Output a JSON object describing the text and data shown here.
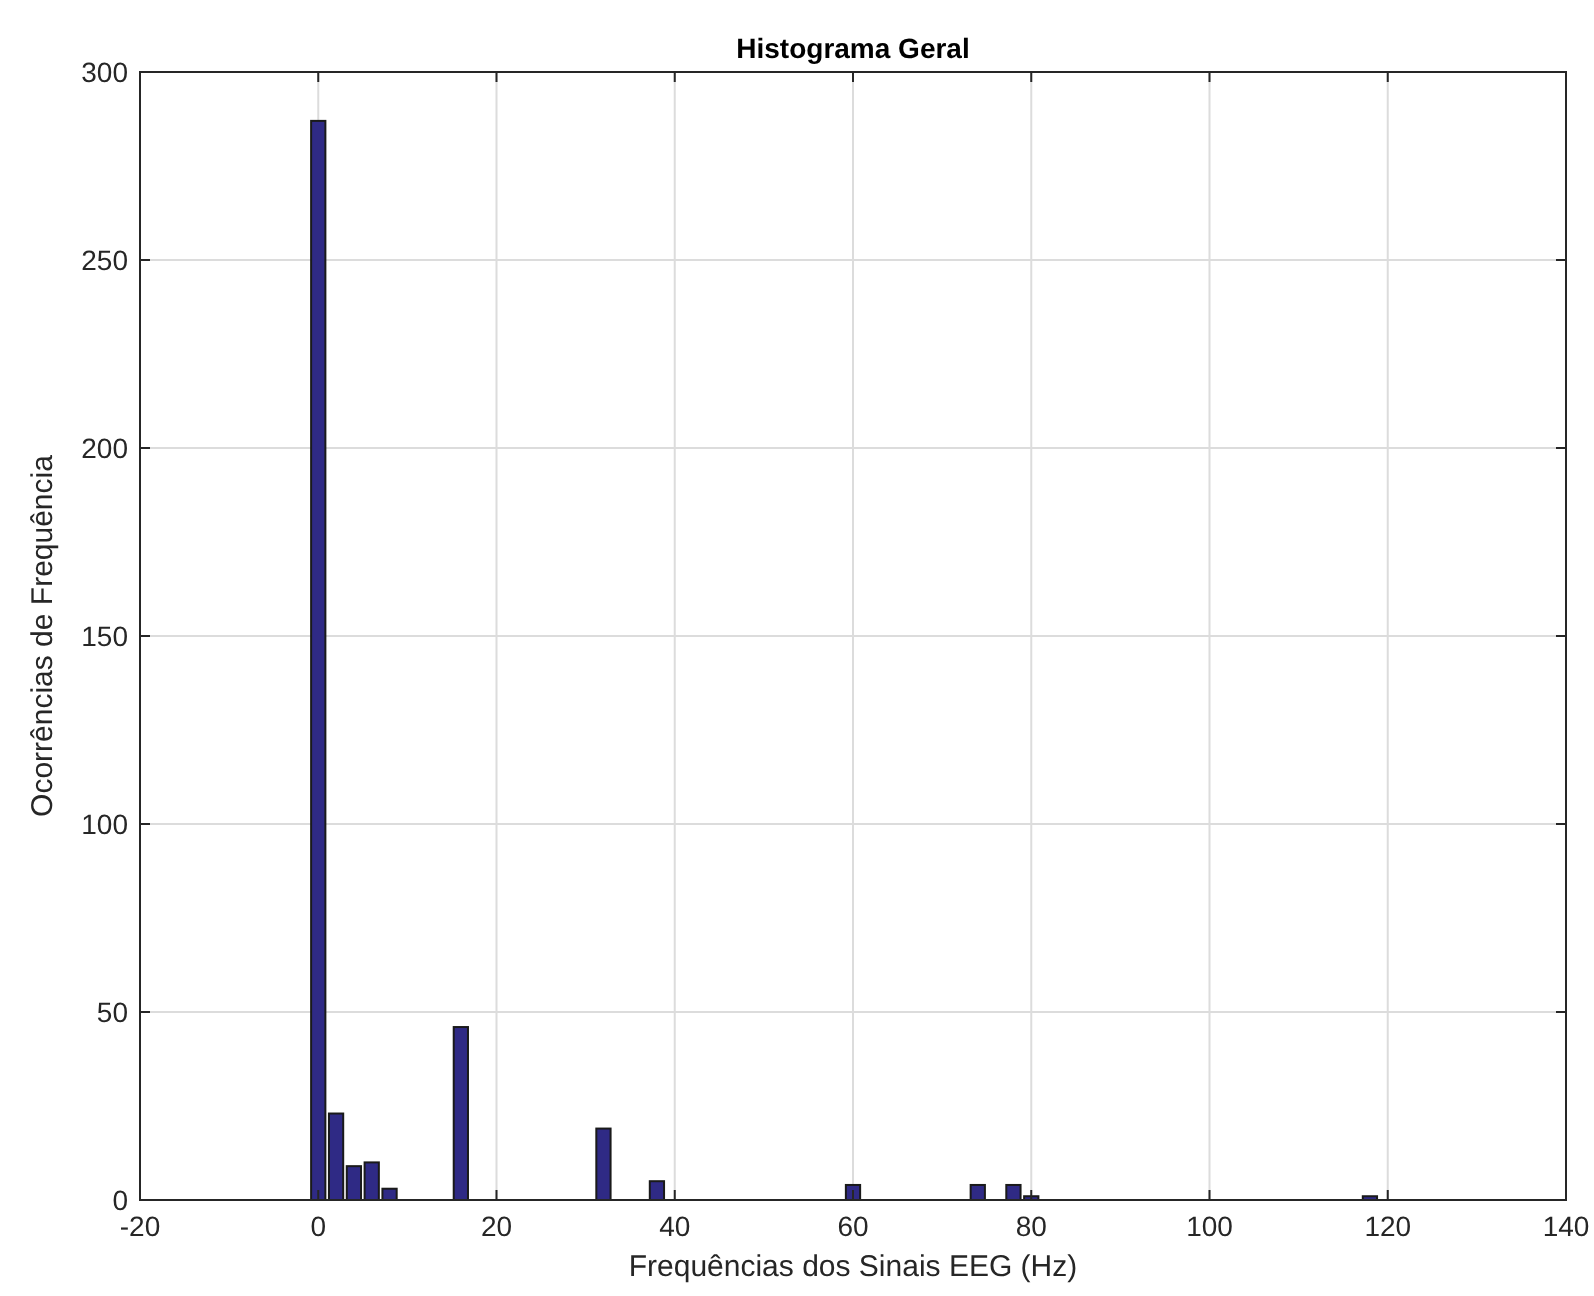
{
  "chart_data": {
    "type": "bar",
    "title": "Histograma Geral",
    "xlabel": "Frequências dos Sinais EEG (Hz)",
    "ylabel": "Ocorrências de Frequência",
    "x": [
      0,
      2,
      4,
      6,
      8,
      16,
      32,
      38,
      60,
      74,
      78,
      80,
      118
    ],
    "values": [
      287,
      23,
      9,
      10,
      3,
      46,
      19,
      5,
      4,
      4,
      4,
      1,
      1
    ],
    "color": "#2f2a85",
    "xlim": [
      -20,
      140
    ],
    "xticks": [
      -20,
      0,
      20,
      40,
      60,
      80,
      100,
      120,
      140
    ],
    "ylim": [
      0,
      300
    ],
    "yticks": [
      0,
      50,
      100,
      150,
      200,
      250,
      300
    ],
    "grid": true
  }
}
